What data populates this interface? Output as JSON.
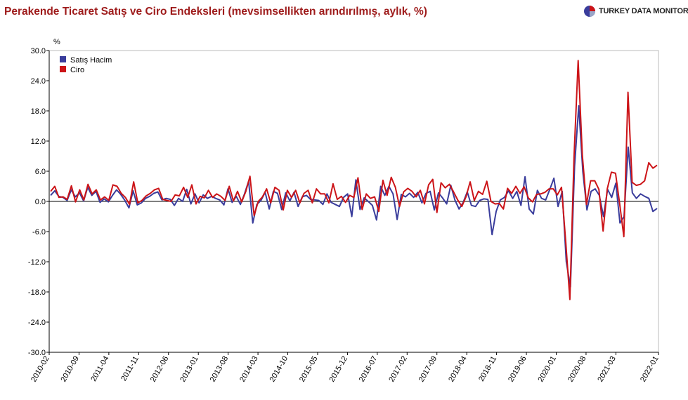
{
  "header": {
    "title": "Perakende Ticaret Satış ve Ciro Endeksleri (mevsimsellikten arındırılmış, aylık, %)",
    "brand": "TURKEY DATA MONITOR"
  },
  "colors": {
    "title": "#9e1b1b",
    "satis": "#3a3d9c",
    "ciro": "#cc1418",
    "axis": "#000000",
    "grid": "#dddddd",
    "frame": "#bbbbbb"
  },
  "chart_data": {
    "type": "line",
    "title": "Perakende Ticaret Satış ve Ciro Endeksleri (mevsimsellikten arındırılmış, aylık, %)",
    "ylabel": "%",
    "xlabel": "",
    "ylim": [
      -30,
      30
    ],
    "grid": false,
    "legend_position": "top-left",
    "yticks": [
      "30.0",
      "24.0",
      "18.0",
      "12.0",
      "6.0",
      "0.0",
      "-6.0",
      "-12.0",
      "-18.0",
      "-24.0",
      "-30.0"
    ],
    "xticks": [
      "2010-02",
      "2010-09",
      "2011-04",
      "2011-11",
      "2012-06",
      "2013-01",
      "2013-08",
      "2014-03",
      "2014-10",
      "2015-05",
      "2015-12",
      "2016-07",
      "2017-02",
      "2017-09",
      "2018-04",
      "2018-11",
      "2019-06",
      "2020-01",
      "2020-08",
      "2021-03",
      "2022-01"
    ],
    "x_start": "2010-02",
    "x_end": "2022-01",
    "series": [
      {
        "name": "Satış Hacim",
        "color": "#3a3d9c",
        "values": [
          1.2,
          2.1,
          1.0,
          0.8,
          0.2,
          2.3,
          0.9,
          1.7,
          0.1,
          2.8,
          1.2,
          2.0,
          -0.2,
          0.5,
          -0.1,
          1.2,
          2.3,
          1.4,
          0.2,
          -1.3,
          2.1,
          -0.7,
          -0.3,
          0.6,
          1.0,
          1.6,
          1.9,
          0.3,
          0.6,
          0.4,
          -0.8,
          0.6,
          0.0,
          2.4,
          -0.5,
          1.5,
          -0.3,
          1.3,
          0.6,
          1.0,
          0.6,
          0.3,
          -0.7,
          2.5,
          -0.2,
          1.0,
          -0.6,
          1.5,
          4.0,
          -4.3,
          -0.6,
          0.2,
          1.8,
          -1.5,
          2.0,
          1.6,
          -1.6,
          1.7,
          0.1,
          1.8,
          -1.0,
          0.9,
          1.2,
          0.4,
          0.3,
          0.2,
          -0.6,
          1.5,
          -0.2,
          -0.6,
          -1.0,
          0.8,
          1.5,
          -3.0,
          4.3,
          -1.6,
          0.7,
          0.0,
          -0.8,
          -3.7,
          3.0,
          1.2,
          3.0,
          1.5,
          -3.6,
          1.4,
          0.9,
          1.6,
          0.8,
          1.8,
          -0.3,
          1.6,
          2.0,
          -1.7,
          1.7,
          0.7,
          -0.5,
          3.2,
          0.3,
          -1.5,
          -0.2,
          1.9,
          -0.8,
          -1.0,
          0.2,
          0.5,
          0.4,
          -6.6,
          -2.0,
          0.3,
          0.8,
          2.1,
          0.6,
          2.0,
          -0.8,
          4.9,
          -1.5,
          -2.5,
          2.2,
          0.6,
          0.3,
          2.4,
          4.6,
          -1.0,
          2.0,
          -12.0,
          -17.0,
          7.0,
          19.0,
          6.0,
          -1.7,
          2.0,
          2.5,
          1.2,
          -3.0,
          2.4,
          0.8,
          3.6,
          -4.3,
          -3.0,
          10.8,
          1.7,
          0.6,
          1.5,
          1.0,
          0.6,
          -2.0,
          -1.4
        ]
      },
      {
        "name": "Ciro",
        "color": "#cc1418",
        "values": [
          2.0,
          3.0,
          0.8,
          0.9,
          0.4,
          3.1,
          -0.1,
          2.3,
          0.3,
          3.4,
          1.5,
          2.3,
          0.3,
          0.9,
          0.2,
          3.3,
          3.0,
          1.6,
          0.8,
          -0.6,
          3.9,
          -0.3,
          0.2,
          1.1,
          1.6,
          2.3,
          2.6,
          0.4,
          0.2,
          0.0,
          1.3,
          1.1,
          2.8,
          0.8,
          3.3,
          -0.5,
          1.0,
          0.7,
          2.2,
          0.8,
          1.5,
          1.0,
          0.2,
          3.0,
          0.1,
          2.0,
          -0.1,
          2.0,
          5.0,
          -2.8,
          0.0,
          0.9,
          2.5,
          -0.3,
          2.8,
          2.2,
          -1.7,
          2.2,
          0.8,
          2.2,
          -0.3,
          1.6,
          2.2,
          -0.3,
          2.5,
          1.5,
          1.5,
          -0.3,
          3.5,
          0.4,
          1.0,
          -0.2,
          1.2,
          0.8,
          4.7,
          -1.6,
          1.5,
          0.6,
          0.9,
          -2.0,
          4.2,
          1.2,
          4.8,
          2.8,
          -1.0,
          1.9,
          2.6,
          2.0,
          0.9,
          2.2,
          -0.5,
          3.3,
          4.4,
          -2.2,
          3.7,
          2.7,
          3.4,
          1.9,
          0.3,
          -1.0,
          0.9,
          3.9,
          0.2,
          2.0,
          1.4,
          4.0,
          0.0,
          -0.5,
          -0.4,
          -1.5,
          2.6,
          1.6,
          3.0,
          1.6,
          2.9,
          0.7,
          -0.1,
          1.4,
          1.5,
          1.8,
          2.5,
          2.5,
          1.3,
          2.8,
          -8.0,
          -19.5,
          8.8,
          28.0,
          9.3,
          -0.6,
          4.1,
          4.1,
          2.4,
          -5.9,
          2.5,
          5.8,
          5.6,
          -0.5,
          -7.0,
          21.7,
          3.8,
          3.2,
          3.4,
          4.1,
          7.7,
          6.6,
          7.2
        ]
      }
    ]
  }
}
